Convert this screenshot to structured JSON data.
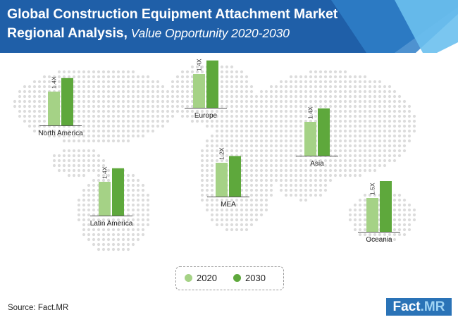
{
  "header": {
    "title_line1": "Global Construction Equipment Attachment Market",
    "title_line2_bold": "Regional Analysis,",
    "title_line2_sub": " Value Opportunity 2020-2030"
  },
  "colors": {
    "header_bg": "#1f5fa8",
    "header_accent": "#4aa3de",
    "bar_2020": "#a5d286",
    "bar_2030": "#5ea83c",
    "map_dot": "#dcdcdc"
  },
  "chart_data": {
    "type": "bar",
    "title": "Global Construction Equipment Attachment Market Regional Analysis, Value Opportunity 2020-2030",
    "series_names": [
      "2020",
      "2030"
    ],
    "regions": [
      {
        "name": "North America",
        "multiplier": "1.4X",
        "values": [
          1,
          1.4
        ]
      },
      {
        "name": "Europe",
        "multiplier": "1.4X",
        "values": [
          1,
          1.4
        ]
      },
      {
        "name": "Asia",
        "multiplier": "1.4X",
        "values": [
          1,
          1.4
        ]
      },
      {
        "name": "MEA",
        "multiplier": "1.2X",
        "values": [
          1,
          1.2
        ]
      },
      {
        "name": "Latin America",
        "multiplier": "1.4X",
        "values": [
          1,
          1.4
        ]
      },
      {
        "name": "Oceania",
        "multiplier": "1.5X",
        "values": [
          1,
          1.5
        ]
      }
    ],
    "legend": [
      "2020",
      "2030"
    ],
    "legend_position": "bottom-center"
  },
  "footer": {
    "source": "Source: Fact.MR",
    "logo_text": "Fact",
    "logo_dot_text": ".MR"
  }
}
